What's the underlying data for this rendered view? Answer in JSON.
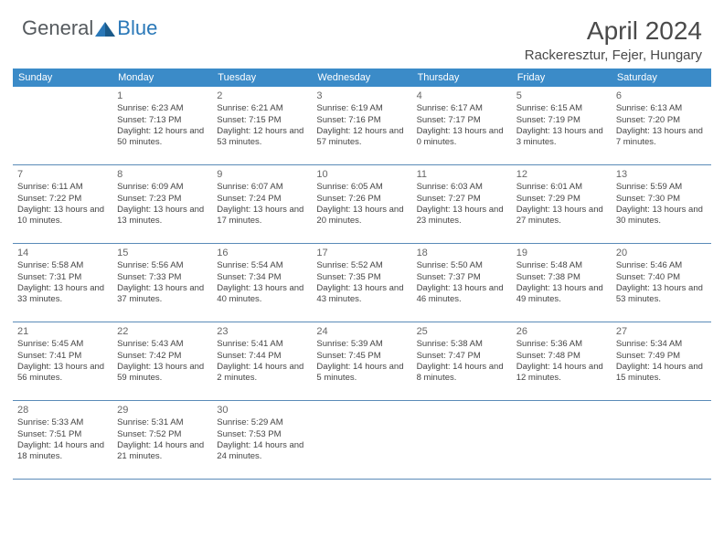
{
  "logo": {
    "text1": "General",
    "text2": "Blue"
  },
  "title": "April 2024",
  "location": "Rackeresztur, Fejer, Hungary",
  "colors": {
    "header_bg": "#3b8bc8",
    "header_text": "#ffffff",
    "cell_border": "#5a8bb8",
    "daynum": "#666666",
    "body_text": "#444444",
    "title_text": "#4a4a4a",
    "logo_gray": "#555a5e",
    "logo_blue": "#2a78b8"
  },
  "weekdays": [
    "Sunday",
    "Monday",
    "Tuesday",
    "Wednesday",
    "Thursday",
    "Friday",
    "Saturday"
  ],
  "weeks": [
    [
      null,
      {
        "d": "1",
        "sr": "6:23 AM",
        "ss": "7:13 PM",
        "dl": "12 hours and 50 minutes."
      },
      {
        "d": "2",
        "sr": "6:21 AM",
        "ss": "7:15 PM",
        "dl": "12 hours and 53 minutes."
      },
      {
        "d": "3",
        "sr": "6:19 AM",
        "ss": "7:16 PM",
        "dl": "12 hours and 57 minutes."
      },
      {
        "d": "4",
        "sr": "6:17 AM",
        "ss": "7:17 PM",
        "dl": "13 hours and 0 minutes."
      },
      {
        "d": "5",
        "sr": "6:15 AM",
        "ss": "7:19 PM",
        "dl": "13 hours and 3 minutes."
      },
      {
        "d": "6",
        "sr": "6:13 AM",
        "ss": "7:20 PM",
        "dl": "13 hours and 7 minutes."
      }
    ],
    [
      {
        "d": "7",
        "sr": "6:11 AM",
        "ss": "7:22 PM",
        "dl": "13 hours and 10 minutes."
      },
      {
        "d": "8",
        "sr": "6:09 AM",
        "ss": "7:23 PM",
        "dl": "13 hours and 13 minutes."
      },
      {
        "d": "9",
        "sr": "6:07 AM",
        "ss": "7:24 PM",
        "dl": "13 hours and 17 minutes."
      },
      {
        "d": "10",
        "sr": "6:05 AM",
        "ss": "7:26 PM",
        "dl": "13 hours and 20 minutes."
      },
      {
        "d": "11",
        "sr": "6:03 AM",
        "ss": "7:27 PM",
        "dl": "13 hours and 23 minutes."
      },
      {
        "d": "12",
        "sr": "6:01 AM",
        "ss": "7:29 PM",
        "dl": "13 hours and 27 minutes."
      },
      {
        "d": "13",
        "sr": "5:59 AM",
        "ss": "7:30 PM",
        "dl": "13 hours and 30 minutes."
      }
    ],
    [
      {
        "d": "14",
        "sr": "5:58 AM",
        "ss": "7:31 PM",
        "dl": "13 hours and 33 minutes."
      },
      {
        "d": "15",
        "sr": "5:56 AM",
        "ss": "7:33 PM",
        "dl": "13 hours and 37 minutes."
      },
      {
        "d": "16",
        "sr": "5:54 AM",
        "ss": "7:34 PM",
        "dl": "13 hours and 40 minutes."
      },
      {
        "d": "17",
        "sr": "5:52 AM",
        "ss": "7:35 PM",
        "dl": "13 hours and 43 minutes."
      },
      {
        "d": "18",
        "sr": "5:50 AM",
        "ss": "7:37 PM",
        "dl": "13 hours and 46 minutes."
      },
      {
        "d": "19",
        "sr": "5:48 AM",
        "ss": "7:38 PM",
        "dl": "13 hours and 49 minutes."
      },
      {
        "d": "20",
        "sr": "5:46 AM",
        "ss": "7:40 PM",
        "dl": "13 hours and 53 minutes."
      }
    ],
    [
      {
        "d": "21",
        "sr": "5:45 AM",
        "ss": "7:41 PM",
        "dl": "13 hours and 56 minutes."
      },
      {
        "d": "22",
        "sr": "5:43 AM",
        "ss": "7:42 PM",
        "dl": "13 hours and 59 minutes."
      },
      {
        "d": "23",
        "sr": "5:41 AM",
        "ss": "7:44 PM",
        "dl": "14 hours and 2 minutes."
      },
      {
        "d": "24",
        "sr": "5:39 AM",
        "ss": "7:45 PM",
        "dl": "14 hours and 5 minutes."
      },
      {
        "d": "25",
        "sr": "5:38 AM",
        "ss": "7:47 PM",
        "dl": "14 hours and 8 minutes."
      },
      {
        "d": "26",
        "sr": "5:36 AM",
        "ss": "7:48 PM",
        "dl": "14 hours and 12 minutes."
      },
      {
        "d": "27",
        "sr": "5:34 AM",
        "ss": "7:49 PM",
        "dl": "14 hours and 15 minutes."
      }
    ],
    [
      {
        "d": "28",
        "sr": "5:33 AM",
        "ss": "7:51 PM",
        "dl": "14 hours and 18 minutes."
      },
      {
        "d": "29",
        "sr": "5:31 AM",
        "ss": "7:52 PM",
        "dl": "14 hours and 21 minutes."
      },
      {
        "d": "30",
        "sr": "5:29 AM",
        "ss": "7:53 PM",
        "dl": "14 hours and 24 minutes."
      },
      null,
      null,
      null,
      null
    ]
  ],
  "labels": {
    "sunrise": "Sunrise:",
    "sunset": "Sunset:",
    "daylight": "Daylight:"
  }
}
